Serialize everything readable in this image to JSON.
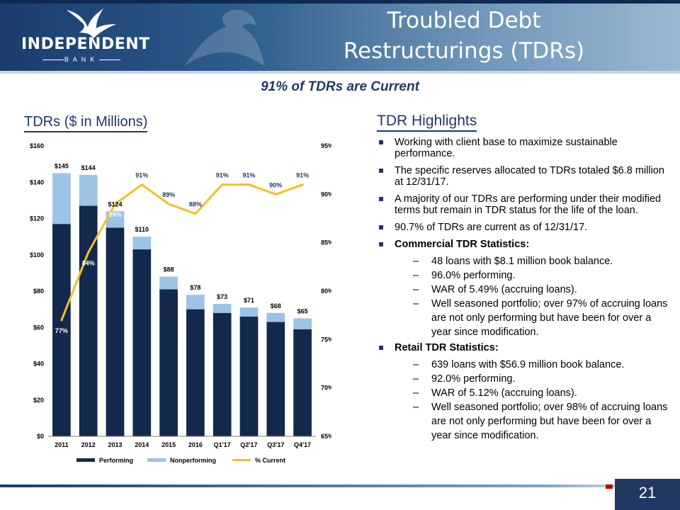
{
  "header": {
    "logo_name": "INDEPENDENT",
    "logo_sub": "BANK",
    "title_line1": "Troubled Debt",
    "title_line2": "Restructurings (TDRs)"
  },
  "subtitle": "91% of TDRs are Current",
  "chart_title": "TDRs ($ in Millions)",
  "colors": {
    "performing": "#13294b",
    "nonperforming": "#9dc3e6",
    "current_line": "#f4c025",
    "accent": "#1f3864"
  },
  "chart_data": {
    "type": "bar",
    "stacked": true,
    "categories": [
      "2011",
      "2012",
      "2013",
      "2014",
      "2015",
      "2016",
      "Q1'17",
      "Q2'17",
      "Q3'17",
      "Q4'17"
    ],
    "series": [
      {
        "name": "Performing",
        "values": [
          117,
          127,
          115,
          103,
          81,
          70,
          68,
          66,
          63,
          59
        ]
      },
      {
        "name": "Nonperforming",
        "values": [
          28,
          17,
          9,
          7,
          7,
          8,
          5,
          5,
          5,
          6
        ]
      },
      {
        "name": "% Current",
        "axis": "right",
        "type": "line",
        "values": [
          77,
          84,
          89,
          91,
          89,
          88,
          91,
          91,
          90,
          91
        ]
      }
    ],
    "total_labels": [
      "$145",
      "$144",
      "$124",
      "$110",
      "$88",
      "$78",
      "$73",
      "$71",
      "$68",
      "$65"
    ],
    "pct_labels": [
      "77%",
      "84%",
      "89%",
      "91%",
      "89%",
      "88%",
      "91%",
      "91%",
      "90%",
      "91%"
    ],
    "y_left": {
      "min": 0,
      "max": 160,
      "step": 20,
      "tick_labels": [
        "$0",
        "$20",
        "$40",
        "$60",
        "$80",
        "$100",
        "$120",
        "$140",
        "$160"
      ]
    },
    "y_right": {
      "min": 65,
      "max": 95,
      "step": 5,
      "tick_labels": [
        "65%",
        "70%",
        "75%",
        "80%",
        "85%",
        "90%",
        "95%"
      ]
    },
    "legend": [
      "Performing",
      "Nonperforming",
      "% Current"
    ],
    "legend_position": "bottom"
  },
  "highlights": {
    "heading": "TDR Highlights",
    "bullets": [
      "Working with client base to maximize sustainable performance.",
      "The specific reserves allocated to TDRs totaled $6.8 million at 12/31/17.",
      "A majority of our TDRs are performing under their modified terms but remain in TDR status for the life of the loan.",
      "90.7% of TDRs are current as of 12/31/17."
    ],
    "commercial": {
      "title": "Commercial TDR Statistics:",
      "items": [
        "48 loans with $8.1 million book balance.",
        "96.0% performing.",
        "WAR of 5.49% (accruing loans).",
        "Well seasoned portfolio; over 97% of accruing loans are not only performing but have been for over a year since modification."
      ]
    },
    "retail": {
      "title": "Retail TDR Statistics:",
      "items": [
        "639 loans with $56.9 million book balance.",
        "92.0% performing.",
        "WAR of 5.12% (accruing loans).",
        "Well seasoned portfolio; over 98% of accruing loans are not only performing but have been for over a year since modification."
      ]
    }
  },
  "page_number": "21"
}
